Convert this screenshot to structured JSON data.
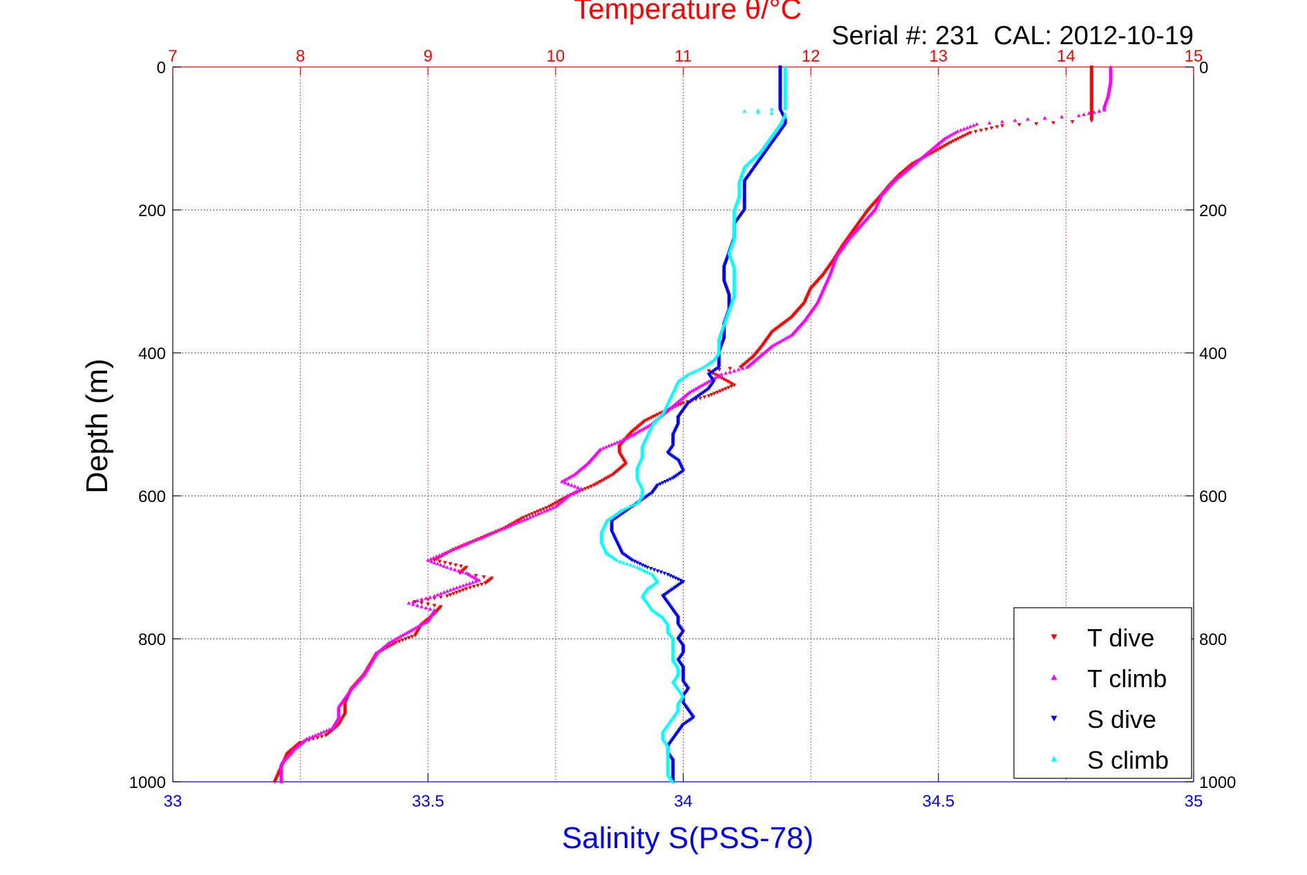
{
  "chart_data": {
    "type": "scatter",
    "title": "Temperature θ/°C",
    "subtitle": "Serial #: 231  CAL: 2012-10-19",
    "ylabel": "Depth (m)",
    "xlabel_bottom": "Salinity S(PSS-78)",
    "xlabel_top": "Temperature θ/°C",
    "y_reversed": true,
    "ylim": [
      0,
      1000
    ],
    "y_ticks": [
      0,
      200,
      400,
      600,
      800,
      1000
    ],
    "temperature_axis": {
      "lim": [
        7,
        15
      ],
      "ticks": [
        7,
        8,
        9,
        10,
        11,
        12,
        13,
        14,
        15
      ]
    },
    "salinity_axis": {
      "lim": [
        33,
        35
      ],
      "ticks": [
        "33",
        "33.5",
        "34",
        "34.5",
        "35"
      ],
      "tick_values": [
        33,
        33.5,
        34,
        34.5,
        35
      ]
    },
    "grid": true,
    "legend_position": "bottom-right",
    "colors": {
      "title": "#ff0000",
      "salinity_axis": "#0000ff",
      "grid_temp": "#ff0000",
      "grid_depth": "#000000"
    },
    "series": [
      {
        "name": "T dive",
        "axis": "temperature",
        "color": "#ff0000",
        "marker": "triangle-down",
        "points": [
          [
            14.2,
            0
          ],
          [
            14.2,
            20
          ],
          [
            14.2,
            40
          ],
          [
            14.2,
            60
          ],
          [
            14.2,
            75
          ],
          [
            13.9,
            78
          ],
          [
            13.5,
            82
          ],
          [
            13.25,
            92
          ],
          [
            13.1,
            105
          ],
          [
            12.95,
            120
          ],
          [
            12.8,
            135
          ],
          [
            12.7,
            150
          ],
          [
            12.62,
            165
          ],
          [
            12.55,
            180
          ],
          [
            12.45,
            200
          ],
          [
            12.35,
            225
          ],
          [
            12.25,
            250
          ],
          [
            12.18,
            270
          ],
          [
            12.1,
            290
          ],
          [
            12.0,
            310
          ],
          [
            11.95,
            330
          ],
          [
            11.85,
            350
          ],
          [
            11.7,
            370
          ],
          [
            11.62,
            390
          ],
          [
            11.55,
            405
          ],
          [
            11.45,
            420
          ],
          [
            11.2,
            425
          ],
          [
            11.3,
            435
          ],
          [
            11.4,
            445
          ],
          [
            11.2,
            460
          ],
          [
            11.0,
            470
          ],
          [
            10.9,
            478
          ],
          [
            10.8,
            486
          ],
          [
            10.7,
            495
          ],
          [
            10.6,
            510
          ],
          [
            10.5,
            530
          ],
          [
            10.5,
            540
          ],
          [
            10.55,
            555
          ],
          [
            10.45,
            570
          ],
          [
            10.3,
            585
          ],
          [
            10.1,
            600
          ],
          [
            9.95,
            615
          ],
          [
            9.75,
            630
          ],
          [
            9.6,
            645
          ],
          [
            9.4,
            660
          ],
          [
            9.2,
            675
          ],
          [
            9.05,
            690
          ],
          [
            9.3,
            700
          ],
          [
            9.25,
            708
          ],
          [
            9.5,
            715
          ],
          [
            9.45,
            722
          ],
          [
            9.3,
            730
          ],
          [
            9.15,
            740
          ],
          [
            8.9,
            748
          ],
          [
            9.1,
            755
          ],
          [
            9.05,
            765
          ],
          [
            8.95,
            780
          ],
          [
            8.9,
            795
          ],
          [
            8.75,
            805
          ],
          [
            8.6,
            820
          ],
          [
            8.55,
            835
          ],
          [
            8.5,
            850
          ],
          [
            8.4,
            870
          ],
          [
            8.35,
            890
          ],
          [
            8.35,
            905
          ],
          [
            8.3,
            920
          ],
          [
            8.2,
            935
          ],
          [
            8.0,
            945
          ],
          [
            7.9,
            960
          ],
          [
            7.85,
            980
          ],
          [
            7.8,
            1000
          ]
        ]
      },
      {
        "name": "T climb",
        "axis": "temperature",
        "color": "#ff00ff",
        "marker": "triangle-up",
        "points": [
          [
            14.35,
            0
          ],
          [
            14.35,
            20
          ],
          [
            14.33,
            40
          ],
          [
            14.3,
            55
          ],
          [
            14.3,
            60
          ],
          [
            14.1,
            68
          ],
          [
            13.7,
            73
          ],
          [
            13.3,
            80
          ],
          [
            13.15,
            90
          ],
          [
            13.05,
            100
          ],
          [
            12.95,
            115
          ],
          [
            12.85,
            130
          ],
          [
            12.75,
            145
          ],
          [
            12.65,
            160
          ],
          [
            12.55,
            180
          ],
          [
            12.5,
            200
          ],
          [
            12.4,
            220
          ],
          [
            12.3,
            240
          ],
          [
            12.2,
            265
          ],
          [
            12.15,
            290
          ],
          [
            12.1,
            310
          ],
          [
            12.05,
            330
          ],
          [
            11.95,
            355
          ],
          [
            11.85,
            375
          ],
          [
            11.7,
            390
          ],
          [
            11.6,
            405
          ],
          [
            11.5,
            420
          ],
          [
            11.3,
            430
          ],
          [
            11.2,
            440
          ],
          [
            11.05,
            455
          ],
          [
            10.95,
            470
          ],
          [
            10.85,
            485
          ],
          [
            10.75,
            500
          ],
          [
            10.55,
            520
          ],
          [
            10.35,
            535
          ],
          [
            10.25,
            555
          ],
          [
            10.15,
            570
          ],
          [
            10.05,
            580
          ],
          [
            10.2,
            590
          ],
          [
            10.1,
            600
          ],
          [
            10.0,
            615
          ],
          [
            9.8,
            630
          ],
          [
            9.6,
            645
          ],
          [
            9.4,
            660
          ],
          [
            9.2,
            675
          ],
          [
            9.0,
            690
          ],
          [
            9.15,
            700
          ],
          [
            9.3,
            708
          ],
          [
            9.4,
            718
          ],
          [
            9.2,
            730
          ],
          [
            9.05,
            740
          ],
          [
            8.85,
            750
          ],
          [
            9.05,
            760
          ],
          [
            9.0,
            775
          ],
          [
            8.85,
            790
          ],
          [
            8.7,
            805
          ],
          [
            8.6,
            820
          ],
          [
            8.55,
            835
          ],
          [
            8.5,
            850
          ],
          [
            8.4,
            870
          ],
          [
            8.3,
            895
          ],
          [
            8.3,
            910
          ],
          [
            8.25,
            925
          ],
          [
            8.05,
            940
          ],
          [
            7.95,
            955
          ],
          [
            7.85,
            975
          ],
          [
            7.85,
            1000
          ]
        ]
      },
      {
        "name": "S dive",
        "axis": "salinity",
        "color": "#0000ff",
        "marker": "triangle-down",
        "points": [
          [
            34.19,
            0
          ],
          [
            34.19,
            20
          ],
          [
            34.19,
            40
          ],
          [
            34.19,
            60
          ],
          [
            34.2,
            75
          ],
          [
            34.2,
            80
          ],
          [
            34.18,
            100
          ],
          [
            34.16,
            120
          ],
          [
            34.14,
            140
          ],
          [
            34.12,
            160
          ],
          [
            34.12,
            180
          ],
          [
            34.12,
            200
          ],
          [
            34.1,
            220
          ],
          [
            34.1,
            240
          ],
          [
            34.09,
            260
          ],
          [
            34.08,
            280
          ],
          [
            34.08,
            300
          ],
          [
            34.09,
            320
          ],
          [
            34.09,
            340
          ],
          [
            34.08,
            360
          ],
          [
            34.08,
            380
          ],
          [
            34.07,
            400
          ],
          [
            34.07,
            420
          ],
          [
            34.05,
            430
          ],
          [
            34.06,
            440
          ],
          [
            34.05,
            450
          ],
          [
            34.03,
            460
          ],
          [
            34.01,
            470
          ],
          [
            34.0,
            480
          ],
          [
            33.99,
            490
          ],
          [
            33.99,
            500
          ],
          [
            33.98,
            515
          ],
          [
            33.98,
            530
          ],
          [
            33.97,
            540
          ],
          [
            33.99,
            550
          ],
          [
            34.0,
            565
          ],
          [
            33.98,
            575
          ],
          [
            33.95,
            585
          ],
          [
            33.94,
            595
          ],
          [
            33.92,
            605
          ],
          [
            33.9,
            615
          ],
          [
            33.88,
            625
          ],
          [
            33.86,
            635
          ],
          [
            33.86,
            650
          ],
          [
            33.87,
            665
          ],
          [
            33.88,
            680
          ],
          [
            33.9,
            690
          ],
          [
            33.93,
            700
          ],
          [
            33.97,
            710
          ],
          [
            34.0,
            720
          ],
          [
            33.98,
            730
          ],
          [
            33.96,
            740
          ],
          [
            33.97,
            750
          ],
          [
            33.98,
            760
          ],
          [
            33.99,
            770
          ],
          [
            33.99,
            780
          ],
          [
            34.0,
            790
          ],
          [
            33.99,
            800
          ],
          [
            34.0,
            810
          ],
          [
            34.0,
            820
          ],
          [
            33.99,
            830
          ],
          [
            34.0,
            840
          ],
          [
            34.0,
            850
          ],
          [
            34.0,
            860
          ],
          [
            34.01,
            870
          ],
          [
            34.0,
            880
          ],
          [
            34.0,
            890
          ],
          [
            34.01,
            900
          ],
          [
            34.02,
            910
          ],
          [
            34.0,
            920
          ],
          [
            33.99,
            930
          ],
          [
            33.98,
            940
          ],
          [
            33.97,
            950
          ],
          [
            33.97,
            960
          ],
          [
            33.98,
            970
          ],
          [
            33.98,
            980
          ],
          [
            33.98,
            990
          ],
          [
            33.98,
            1000
          ]
        ]
      },
      {
        "name": "S climb",
        "axis": "salinity",
        "color": "#00ffff",
        "marker": "triangle-up",
        "points": [
          [
            34.2,
            0
          ],
          [
            34.2,
            20
          ],
          [
            34.2,
            40
          ],
          [
            34.2,
            58
          ],
          [
            34.12,
            62
          ],
          [
            34.2,
            66
          ],
          [
            34.19,
            80
          ],
          [
            34.17,
            100
          ],
          [
            34.15,
            120
          ],
          [
            34.12,
            140
          ],
          [
            34.11,
            160
          ],
          [
            34.11,
            180
          ],
          [
            34.1,
            200
          ],
          [
            34.1,
            220
          ],
          [
            34.1,
            240
          ],
          [
            34.09,
            260
          ],
          [
            34.1,
            280
          ],
          [
            34.1,
            300
          ],
          [
            34.1,
            320
          ],
          [
            34.09,
            340
          ],
          [
            34.08,
            360
          ],
          [
            34.07,
            380
          ],
          [
            34.07,
            400
          ],
          [
            34.06,
            410
          ],
          [
            34.04,
            420
          ],
          [
            34.01,
            430
          ],
          [
            33.99,
            440
          ],
          [
            33.98,
            455
          ],
          [
            33.97,
            470
          ],
          [
            33.96,
            485
          ],
          [
            33.94,
            500
          ],
          [
            33.93,
            515
          ],
          [
            33.92,
            530
          ],
          [
            33.92,
            545
          ],
          [
            33.91,
            560
          ],
          [
            33.91,
            575
          ],
          [
            33.92,
            590
          ],
          [
            33.92,
            600
          ],
          [
            33.91,
            610
          ],
          [
            33.88,
            620
          ],
          [
            33.85,
            635
          ],
          [
            33.84,
            650
          ],
          [
            33.84,
            665
          ],
          [
            33.85,
            680
          ],
          [
            33.87,
            690
          ],
          [
            33.91,
            700
          ],
          [
            33.94,
            710
          ],
          [
            33.95,
            720
          ],
          [
            33.93,
            730
          ],
          [
            33.92,
            740
          ],
          [
            33.93,
            750
          ],
          [
            33.94,
            760
          ],
          [
            33.96,
            770
          ],
          [
            33.97,
            780
          ],
          [
            33.97,
            790
          ],
          [
            33.98,
            800
          ],
          [
            33.98,
            810
          ],
          [
            33.98,
            820
          ],
          [
            33.98,
            830
          ],
          [
            33.99,
            840
          ],
          [
            33.99,
            850
          ],
          [
            33.98,
            860
          ],
          [
            33.99,
            870
          ],
          [
            34.0,
            880
          ],
          [
            33.99,
            890
          ],
          [
            33.99,
            900
          ],
          [
            33.98,
            910
          ],
          [
            33.97,
            920
          ],
          [
            33.96,
            930
          ],
          [
            33.96,
            940
          ],
          [
            33.97,
            950
          ],
          [
            33.97,
            960
          ],
          [
            33.97,
            970
          ],
          [
            33.97,
            980
          ],
          [
            33.97,
            990
          ],
          [
            33.98,
            1000
          ]
        ]
      }
    ]
  }
}
